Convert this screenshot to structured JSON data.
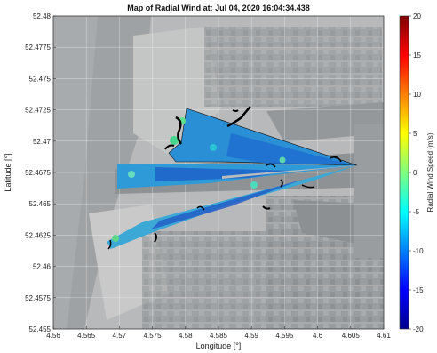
{
  "chart_data": {
    "type": "heatmap",
    "title": "Map of Radial Wind at: Jul 04, 2020 16:04:34.438",
    "xlabel": "Longitude [°]",
    "ylabel": "Latitude [°]",
    "xlim": [
      4.56,
      4.61
    ],
    "ylim": [
      52.455,
      52.48
    ],
    "xticks": [
      "4.56",
      "4.565",
      "4.57",
      "4.575",
      "4.58",
      "4.585",
      "4.59",
      "4.595",
      "4.6",
      "4.605",
      "4.61"
    ],
    "yticks": [
      "52.455",
      "52.4575",
      "52.46",
      "52.4625",
      "52.465",
      "52.4675",
      "52.47",
      "52.4725",
      "52.475",
      "52.4775",
      "52.48"
    ],
    "colorbar": {
      "label": "Radial Wind Speed (m/s)",
      "range": [
        -20,
        20
      ],
      "ticks": [
        "20",
        "15",
        "10",
        "5",
        "0",
        "-5",
        "-10",
        "-15",
        "-20"
      ],
      "colormap": "jet"
    },
    "scanner_origin": {
      "lon": 4.604,
      "lat": 52.4677
    },
    "scan_sectors": [
      {
        "name": "upper",
        "outer_edge": [
          [
            4.5795,
            52.4725
          ],
          [
            4.5755,
            52.4685
          ]
        ],
        "value": -7
      },
      {
        "name": "west",
        "outer_edge": [
          [
            4.569,
            52.468
          ],
          [
            4.57,
            52.466
          ]
        ],
        "value": -8
      },
      {
        "name": "lower",
        "outer_edge": [
          [
            4.5665,
            52.4615
          ],
          [
            4.5705,
            52.4605
          ]
        ],
        "value": -8
      }
    ],
    "grid": true,
    "background": "satellite imagery"
  }
}
